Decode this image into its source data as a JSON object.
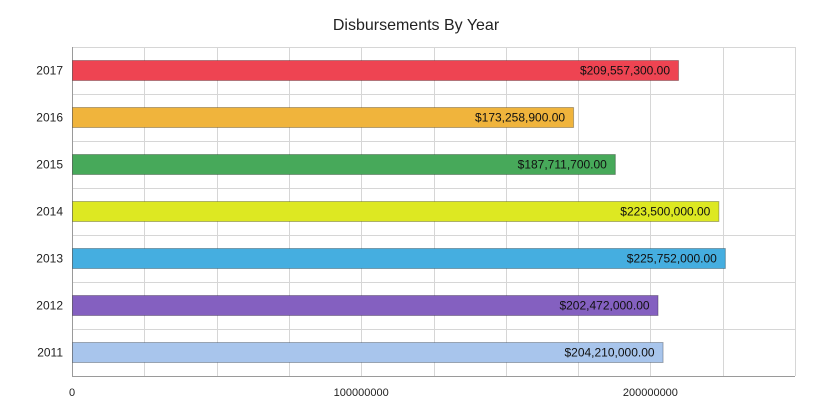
{
  "chart_data": {
    "type": "bar",
    "orientation": "horizontal",
    "title": "Disbursements By Year",
    "xlabel": "",
    "ylabel": "",
    "xlim": [
      0,
      250000000
    ],
    "x_ticks": [
      "0",
      "100000000",
      "200000000"
    ],
    "grid": true,
    "legend": "none",
    "categories": [
      "2017",
      "2016",
      "2015",
      "2014",
      "2013",
      "2012",
      "2011"
    ],
    "values": [
      209557300,
      173258900,
      187711700,
      223500000,
      225752000,
      202472000,
      204210000
    ],
    "data_labels": [
      "$209,557,300.00",
      "$173,258,900.00",
      "$187,711,700.00",
      "$223,500,000.00",
      "$225,752,000.00",
      "$202,472,000.00",
      "$204,210,000.00"
    ],
    "colors": [
      "#ee4452",
      "#f0b43c",
      "#47a95a",
      "#dde822",
      "#45aee0",
      "#8460c0",
      "#a8c5ec"
    ]
  }
}
